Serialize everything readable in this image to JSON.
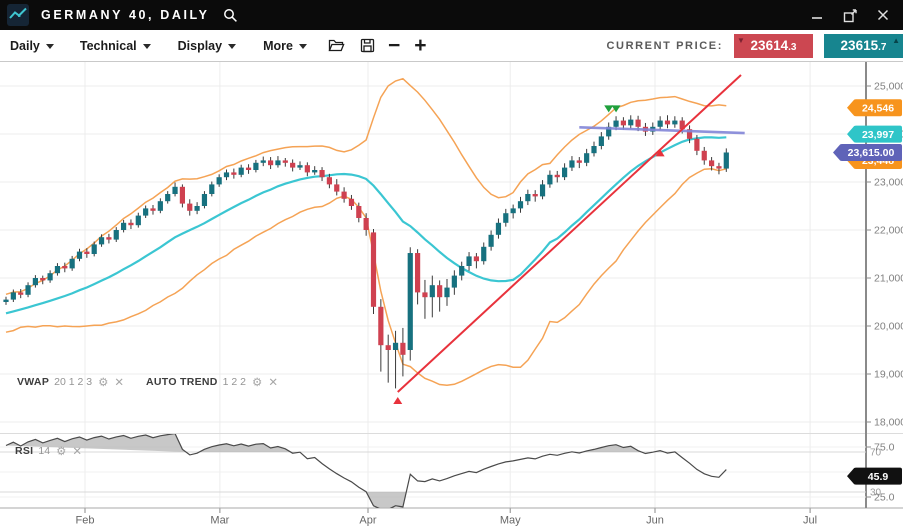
{
  "titlebar": {
    "title": "GERMANY 40, DAILY"
  },
  "icons": {
    "logo": "chart-line",
    "search": "magnifier",
    "minimize": "minimize-bar",
    "popout": "pop-out-window",
    "close": "close-x",
    "open": "folder-open",
    "save": "floppy-disk",
    "zoom_out": "minus",
    "zoom_in": "plus",
    "settings": "gear",
    "remove": "x"
  },
  "toolbar": {
    "menus": [
      {
        "label": "Daily"
      },
      {
        "label": "Technical"
      },
      {
        "label": "Display"
      },
      {
        "label": "More"
      }
    ],
    "zoom_out_glyph": "−",
    "zoom_in_glyph": "+",
    "current_price_label": "CURRENT PRICE:",
    "bid": {
      "value": "23614",
      "decimal": ".3",
      "arrow": "▼"
    },
    "ask": {
      "value": "23615",
      "decimal": ".7",
      "arrow": "▲"
    }
  },
  "indicators": {
    "vwap": {
      "label": "VWAP",
      "params": "20 1 2 3"
    },
    "auto_trend": {
      "label": "AUTO TREND",
      "params": "1 2 2"
    },
    "rsi": {
      "label": "RSI",
      "params": "14"
    },
    "gear_glyph": "⚙",
    "close_glyph": "✕"
  },
  "colors": {
    "bull": "#17717f",
    "bear": "#cf4150",
    "wick": "#3a3a3a",
    "band": "#f5a355",
    "vwap": "#3bc6d2",
    "trend": "#e8323c",
    "resistance": "#8286d8",
    "badge_orange": "#f7941d",
    "badge_teal": "#2fc5c8",
    "badge_purple": "#5f63b8",
    "badge_black": "#111111",
    "bid_bg": "#cc4751",
    "ask_bg": "#17858f",
    "grid": "#ececec",
    "axis": "#8a8a8a",
    "tick_text": "#808080",
    "month_text": "#666666",
    "rsi_line": "#4a4a4a",
    "rsi_fill": "#b5b5b5",
    "marker_green": "#1fa03c"
  },
  "chart_data": {
    "type": "candlestick",
    "title": "GERMANY 40, DAILY",
    "timeframe": "Daily",
    "x_axis": {
      "months": [
        {
          "label": "Feb",
          "i": 10.75
        },
        {
          "label": "Mar",
          "i": 29.1
        },
        {
          "label": "Apr",
          "i": 49.25
        },
        {
          "label": "May",
          "i": 68.6
        },
        {
          "label": "Jun",
          "i": 88.3
        },
        {
          "label": "Jul",
          "i": 109.4
        }
      ]
    },
    "y_axis": {
      "ticks": [
        {
          "v": 25000,
          "label": "25,000"
        },
        {
          "v": 24000,
          "label": "24,000"
        },
        {
          "v": 23000,
          "label": "23,000"
        },
        {
          "v": 22000,
          "label": "22,000"
        },
        {
          "v": 21000,
          "label": "21,000"
        },
        {
          "v": 20000,
          "label": "20,000"
        },
        {
          "v": 19000,
          "label": "19,000"
        },
        {
          "v": 18000,
          "label": "18,000"
        }
      ]
    },
    "price_badges": [
      {
        "label": "24,546",
        "price": 24546,
        "color_key": "badge_orange"
      },
      {
        "label": "23,997",
        "price": 23997,
        "color_key": "badge_teal"
      },
      {
        "label": "23,448",
        "price": 23448,
        "color_key": "badge_orange"
      },
      {
        "label": "23,615.00",
        "price": 23615,
        "color_key": "badge_purple"
      }
    ],
    "history_closes": [
      19800,
      19900,
      19850,
      20000,
      20100,
      20050,
      20150,
      20250,
      20200,
      20300,
      20250,
      20350,
      20300,
      20400,
      20350,
      20450,
      20400,
      20450,
      20500,
      20500
    ],
    "candles": [
      [
        20500,
        20610,
        20440,
        20550
      ],
      [
        20550,
        20760,
        20500,
        20700
      ],
      [
        20700,
        20770,
        20580,
        20650
      ],
      [
        20650,
        20910,
        20600,
        20850
      ],
      [
        20850,
        21060,
        20800,
        21000
      ],
      [
        21000,
        21050,
        20870,
        20950
      ],
      [
        20950,
        21160,
        20900,
        21100
      ],
      [
        21100,
        21310,
        21050,
        21250
      ],
      [
        21250,
        21320,
        21120,
        21200
      ],
      [
        21200,
        21460,
        21150,
        21400
      ],
      [
        21400,
        21610,
        21350,
        21550
      ],
      [
        21550,
        21620,
        21420,
        21500
      ],
      [
        21500,
        21760,
        21450,
        21700
      ],
      [
        21700,
        21910,
        21650,
        21850
      ],
      [
        21850,
        21920,
        21720,
        21800
      ],
      [
        21800,
        22060,
        21750,
        22000
      ],
      [
        22000,
        22210,
        21950,
        22150
      ],
      [
        22150,
        22220,
        22020,
        22100
      ],
      [
        22100,
        22360,
        22050,
        22300
      ],
      [
        22300,
        22510,
        22250,
        22450
      ],
      [
        22450,
        22520,
        22320,
        22400
      ],
      [
        22400,
        22660,
        22350,
        22600
      ],
      [
        22600,
        22810,
        22550,
        22750
      ],
      [
        22750,
        22990,
        22700,
        22900
      ],
      [
        22900,
        22950,
        22470,
        22550
      ],
      [
        22550,
        22640,
        22300,
        22400
      ],
      [
        22400,
        22580,
        22330,
        22500
      ],
      [
        22500,
        22810,
        22450,
        22750
      ],
      [
        22750,
        23010,
        22700,
        22950
      ],
      [
        22950,
        23160,
        22900,
        23100
      ],
      [
        23100,
        23260,
        23040,
        23200
      ],
      [
        23200,
        23280,
        23070,
        23150
      ],
      [
        23150,
        23360,
        23100,
        23300
      ],
      [
        23300,
        23370,
        23170,
        23250
      ],
      [
        23250,
        23460,
        23200,
        23400
      ],
      [
        23400,
        23530,
        23330,
        23450
      ],
      [
        23450,
        23520,
        23270,
        23350
      ],
      [
        23350,
        23540,
        23300,
        23450
      ],
      [
        23450,
        23500,
        23320,
        23400
      ],
      [
        23400,
        23470,
        23220,
        23300
      ],
      [
        23300,
        23430,
        23250,
        23350
      ],
      [
        23350,
        23410,
        23120,
        23200
      ],
      [
        23200,
        23330,
        23150,
        23250
      ],
      [
        23250,
        23310,
        23020,
        23100
      ],
      [
        23100,
        23170,
        22870,
        22950
      ],
      [
        22950,
        23060,
        22720,
        22800
      ],
      [
        22800,
        22890,
        22570,
        22650
      ],
      [
        22650,
        22730,
        22420,
        22500
      ],
      [
        22500,
        22570,
        22160,
        22250
      ],
      [
        22250,
        22350,
        21880,
        22000
      ],
      [
        21950,
        22020,
        20250,
        20400
      ],
      [
        20400,
        20560,
        19050,
        19600
      ],
      [
        19600,
        19820,
        18820,
        19500
      ],
      [
        19500,
        19900,
        18700,
        19650
      ],
      [
        19650,
        19960,
        18950,
        19400
      ],
      [
        19500,
        21640,
        19280,
        21520
      ],
      [
        21520,
        21600,
        20450,
        20700
      ],
      [
        20700,
        20960,
        20150,
        20600
      ],
      [
        20600,
        21050,
        20180,
        20850
      ],
      [
        20850,
        20950,
        20300,
        20600
      ],
      [
        20600,
        20980,
        20420,
        20800
      ],
      [
        20800,
        21160,
        20650,
        21050
      ],
      [
        21050,
        21340,
        20950,
        21250
      ],
      [
        21250,
        21540,
        21150,
        21450
      ],
      [
        21450,
        21520,
        21200,
        21350
      ],
      [
        21350,
        21740,
        21280,
        21650
      ],
      [
        21650,
        21990,
        21570,
        21900
      ],
      [
        21900,
        22240,
        21820,
        22150
      ],
      [
        22150,
        22440,
        22070,
        22350
      ],
      [
        22350,
        22530,
        22240,
        22450
      ],
      [
        22450,
        22690,
        22360,
        22600
      ],
      [
        22600,
        22840,
        22520,
        22750
      ],
      [
        22750,
        22830,
        22590,
        22700
      ],
      [
        22700,
        23040,
        22640,
        22950
      ],
      [
        22950,
        23240,
        22880,
        23150
      ],
      [
        23150,
        23230,
        22990,
        23100
      ],
      [
        23100,
        23390,
        23040,
        23300
      ],
      [
        23300,
        23540,
        23230,
        23450
      ],
      [
        23450,
        23520,
        23290,
        23400
      ],
      [
        23400,
        23690,
        23330,
        23600
      ],
      [
        23600,
        23840,
        23530,
        23750
      ],
      [
        23750,
        24040,
        23680,
        23950
      ],
      [
        23950,
        24240,
        23880,
        24150
      ],
      [
        24150,
        24370,
        24080,
        24280
      ],
      [
        24280,
        24350,
        24090,
        24180
      ],
      [
        24180,
        24390,
        24110,
        24300
      ],
      [
        24300,
        24380,
        24060,
        24150
      ],
      [
        24150,
        24230,
        23960,
        24050
      ],
      [
        24050,
        24240,
        23980,
        24150
      ],
      [
        24150,
        24370,
        24080,
        24280
      ],
      [
        24280,
        24390,
        24120,
        24200
      ],
      [
        24200,
        24370,
        24130,
        24280
      ],
      [
        24280,
        24350,
        24010,
        24100
      ],
      [
        24100,
        24180,
        23810,
        23900
      ],
      [
        23900,
        23980,
        23560,
        23650
      ],
      [
        23650,
        23730,
        23360,
        23450
      ],
      [
        23450,
        23520,
        23240,
        23330
      ],
      [
        23330,
        23400,
        23160,
        23280
      ],
      [
        23280,
        23700,
        23210,
        23615
      ]
    ],
    "bollinger": {
      "period": 20,
      "stddev": 2
    },
    "trend_line": {
      "i1": 53.3,
      "p1": 18625,
      "i2": 100,
      "p2": 25230
    },
    "resistance_line": {
      "i1": 78,
      "p1": 24140,
      "i2": 100.5,
      "p2": 24020
    },
    "markers": [
      {
        "i": 82,
        "p": 24450,
        "dir": "down",
        "color_key": "marker_green"
      },
      {
        "i": 83,
        "p": 24450,
        "dir": "down",
        "color_key": "marker_green"
      },
      {
        "i": 89,
        "p": 23680,
        "dir": "up",
        "color_key": "trend"
      },
      {
        "i": 53.3,
        "p": 18520,
        "dir": "up",
        "color_key": "trend"
      }
    ],
    "rsi": {
      "period": 14,
      "bands": [
        {
          "v": 70,
          "label": "70"
        },
        {
          "v": 30,
          "label": "30"
        }
      ],
      "ticks": [
        {
          "v": 75,
          "label": "75.0"
        },
        {
          "v": 50,
          "label": "50.0"
        },
        {
          "v": 25,
          "label": "25.0"
        }
      ],
      "current_label": "45.9",
      "current_value": 45.9
    }
  }
}
